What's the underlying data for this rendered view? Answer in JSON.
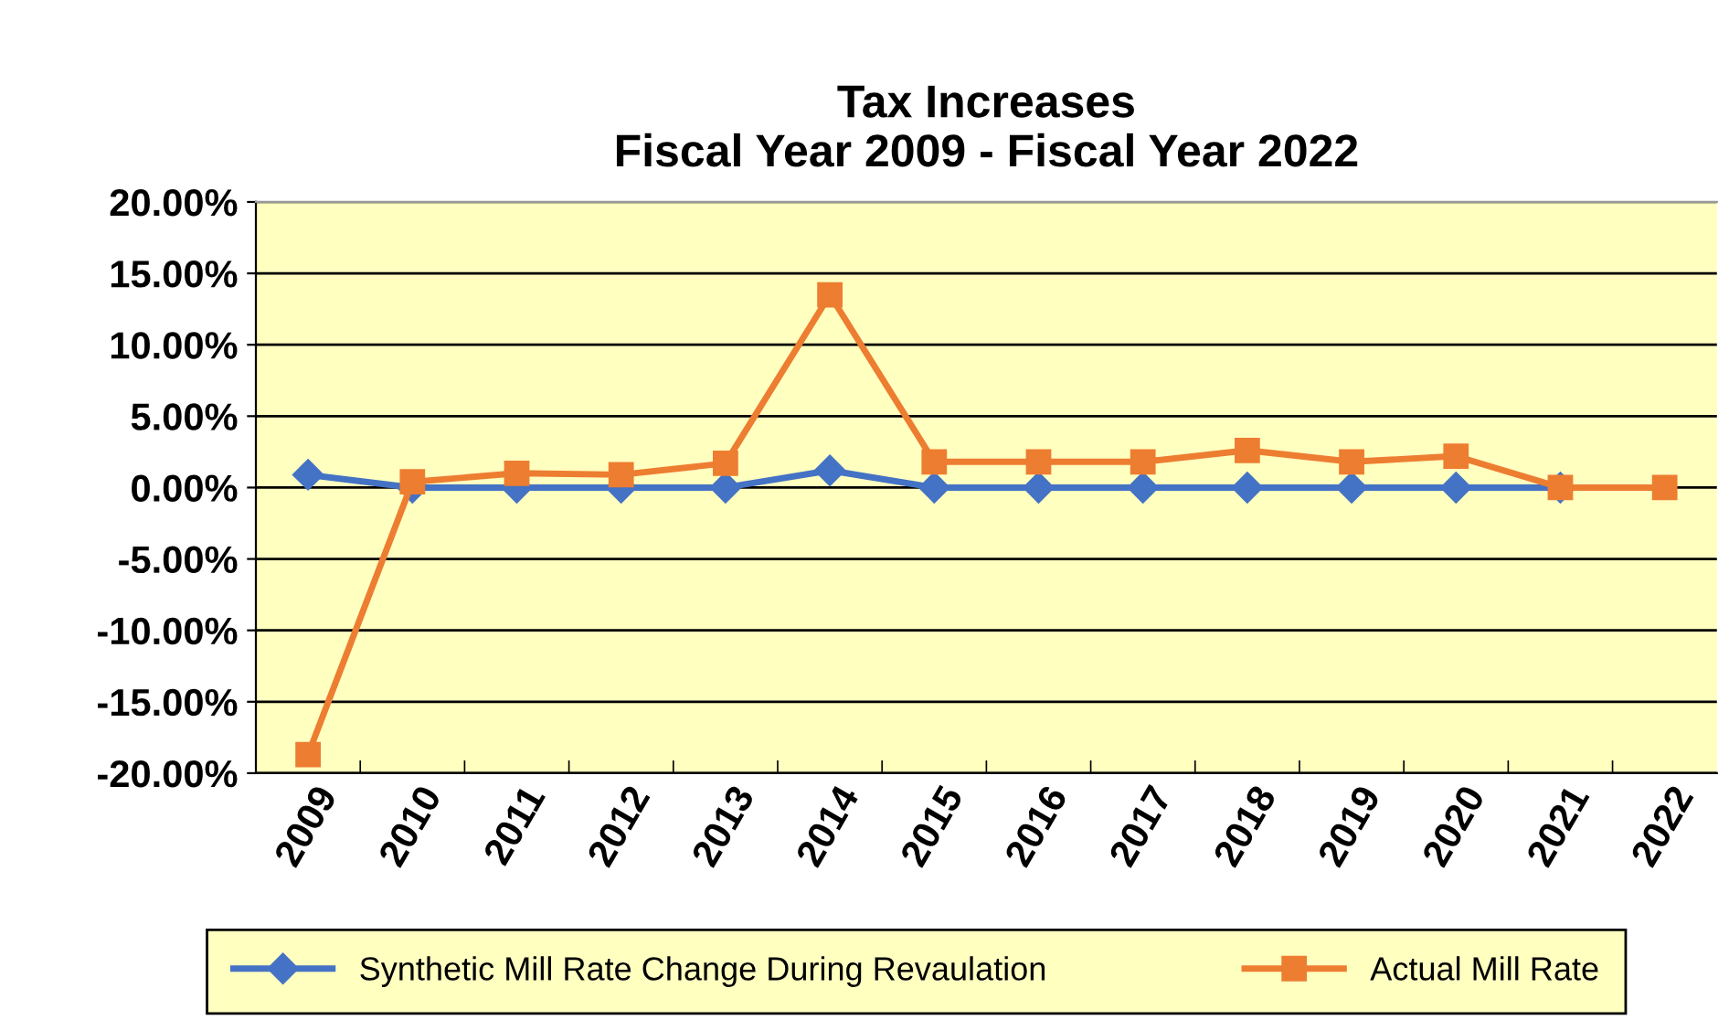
{
  "chart_data": {
    "type": "line",
    "title": "Tax Increases\nFiscal Year 2009 - Fiscal Year 2022",
    "categories": [
      "2009",
      "2010",
      "2011",
      "2012",
      "2013",
      "2014",
      "2015",
      "2016",
      "2017",
      "2018",
      "2019",
      "2020",
      "2021",
      "2022"
    ],
    "series": [
      {
        "name": "Synthetic Mill Rate Change During Revaulation",
        "color": "#4472c4",
        "marker": "diamond",
        "values": [
          0.9,
          0,
          0,
          0,
          0,
          1.2,
          0,
          0,
          0,
          0,
          0,
          0,
          0,
          null
        ]
      },
      {
        "name": "Actual Mill Rate",
        "color": "#ed7d31",
        "marker": "square",
        "values": [
          -18.7,
          0.4,
          1.0,
          0.9,
          1.7,
          13.5,
          1.8,
          1.8,
          1.8,
          2.6,
          1.8,
          2.2,
          0,
          0
        ]
      }
    ],
    "ylim": [
      -20,
      20
    ],
    "yticks": [
      {
        "value": -20,
        "label": "-20.00%"
      },
      {
        "value": -15,
        "label": "-15.00%"
      },
      {
        "value": -10,
        "label": "-10.00%"
      },
      {
        "value": -5,
        "label": "-5.00%"
      },
      {
        "value": 0,
        "label": "0.00%"
      },
      {
        "value": 5,
        "label": "5.00%"
      },
      {
        "value": 10,
        "label": "10.00%"
      },
      {
        "value": 15,
        "label": "15.00%"
      },
      {
        "value": 20,
        "label": "20.00%"
      }
    ],
    "grid": "y",
    "legend": "bottom",
    "line_style": "solid"
  }
}
